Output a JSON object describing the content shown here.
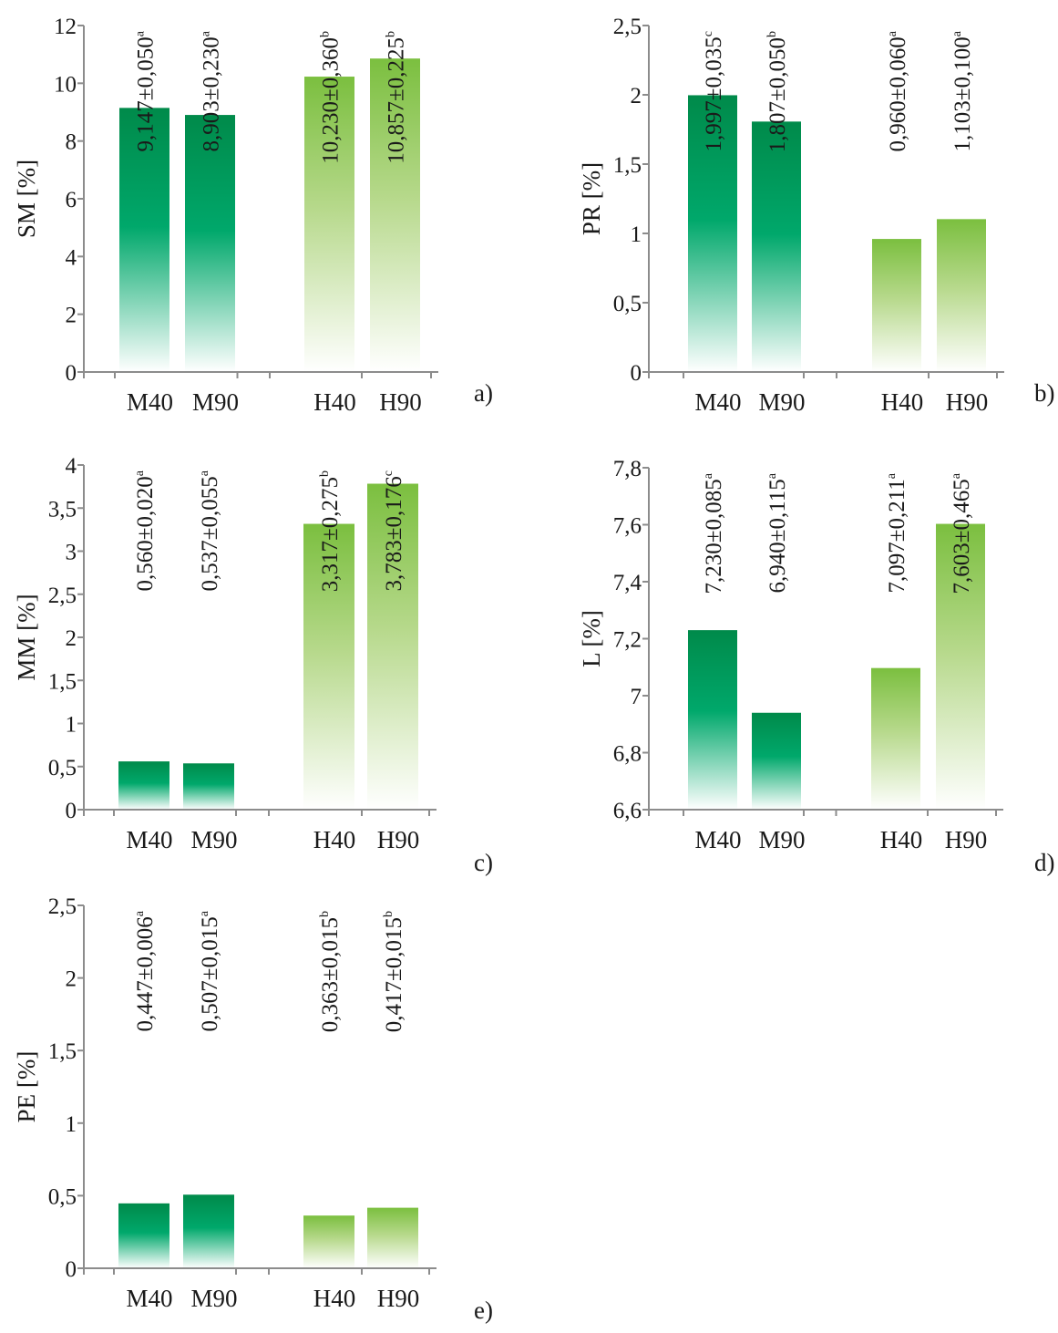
{
  "colors": {
    "m_bar": "#008a4a",
    "m_bar_mid": "#00a86b",
    "h_bar": "#7bbf3f",
    "axis": "#8c8c8c"
  },
  "chart_data": [
    {
      "type": "bar",
      "panel": "a)",
      "ylabel": "SM [%]",
      "categories": [
        "M40",
        "M90",
        "H40",
        "H90"
      ],
      "values": [
        9.147,
        8.903,
        10.23,
        10.857
      ],
      "labels": [
        "9,147±0,050",
        "8,903±0,230",
        "10,230±0,360",
        "10,857±0,225"
      ],
      "superscripts": [
        "a",
        "a",
        "b",
        "b"
      ],
      "ylim": [
        0,
        12
      ],
      "ticks": [
        "0",
        "2",
        "4",
        "6",
        "8",
        "10",
        "12"
      ]
    },
    {
      "type": "bar",
      "panel": "b)",
      "ylabel": "PR [%]",
      "categories": [
        "M40",
        "M90",
        "H40",
        "H90"
      ],
      "values": [
        1.997,
        1.807,
        0.96,
        1.103
      ],
      "labels": [
        "1,997±0,035",
        "1,807±0,050",
        "0,960±0,060",
        "1,103±0,100"
      ],
      "superscripts": [
        "c",
        "b",
        "a",
        "a"
      ],
      "ylim": [
        0,
        2.5
      ],
      "ticks": [
        "0",
        "0,5",
        "1",
        "1,5",
        "2",
        "2,5"
      ]
    },
    {
      "type": "bar",
      "panel": "c)",
      "ylabel": "MM [%]",
      "categories": [
        "M40",
        "M90",
        "H40",
        "H90"
      ],
      "values": [
        0.56,
        0.537,
        3.317,
        3.783
      ],
      "labels": [
        "0,560±0,020",
        "0,537±0,055",
        "3,317±0,275",
        "3,783±0,176"
      ],
      "superscripts": [
        "a",
        "a",
        "b",
        "c"
      ],
      "ylim": [
        0,
        4
      ],
      "ticks": [
        "0",
        "0,5",
        "1",
        "1,5",
        "2",
        "2,5",
        "3",
        "3,5",
        "4"
      ]
    },
    {
      "type": "bar",
      "panel": "d)",
      "ylabel": "L [%]",
      "categories": [
        "M40",
        "M90",
        "H40",
        "H90"
      ],
      "values": [
        7.23,
        6.94,
        7.097,
        7.603
      ],
      "labels": [
        "7,230±0,085",
        "6,940±0,115",
        "7,097±0,211",
        "7,603±0,465"
      ],
      "superscripts": [
        "a",
        "a",
        "a",
        "a"
      ],
      "ylim": [
        6.6,
        7.8
      ],
      "ticks": [
        "6,6",
        "6,8",
        "7",
        "7,2",
        "7,4",
        "7,6",
        "7,8"
      ]
    },
    {
      "type": "bar",
      "panel": "e)",
      "ylabel": "PE [%]",
      "categories": [
        "M40",
        "M90",
        "H40",
        "H90"
      ],
      "values": [
        0.447,
        0.507,
        0.363,
        0.417
      ],
      "labels": [
        "0,447±0,006",
        "0,507±0,015",
        "0,363±0,015",
        "0,417±0,015"
      ],
      "superscripts": [
        "a",
        "a",
        "b",
        "b"
      ],
      "ylim": [
        0,
        2.5
      ],
      "ticks": [
        "0",
        "0,5",
        "1",
        "1,5",
        "2",
        "2,5"
      ]
    }
  ]
}
